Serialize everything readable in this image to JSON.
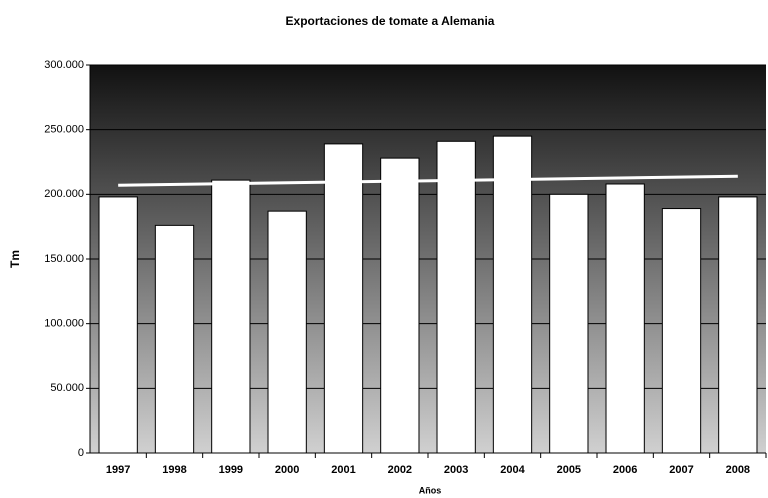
{
  "chart_data": {
    "type": "bar",
    "title": "Exportaciones de tomate a Alemania",
    "x_label": "Años",
    "y_label": "Tm",
    "categories": [
      "1997",
      "1998",
      "1999",
      "2000",
      "2001",
      "2002",
      "2003",
      "2004",
      "2005",
      "2006",
      "2007",
      "2008"
    ],
    "values": [
      198000,
      176000,
      211000,
      187000,
      239000,
      228000,
      241000,
      245000,
      200000,
      208000,
      189000,
      198000
    ],
    "color": "#ffffff",
    "trendline": {
      "start": 207000,
      "end": 214000,
      "color": "#ffffff"
    },
    "ylim": [
      0,
      300000
    ],
    "yticks": [
      0,
      {
        "value": 50000,
        "label": "50.000"
      },
      {
        "value": 100000,
        "label": "100.000"
      },
      {
        "value": 150000,
        "label": "150.000"
      },
      {
        "value": 200000,
        "label": "200.000"
      },
      {
        "value": 250000,
        "label": "250.000"
      },
      {
        "value": 300000,
        "label": "300.000"
      }
    ],
    "grid": true
  }
}
